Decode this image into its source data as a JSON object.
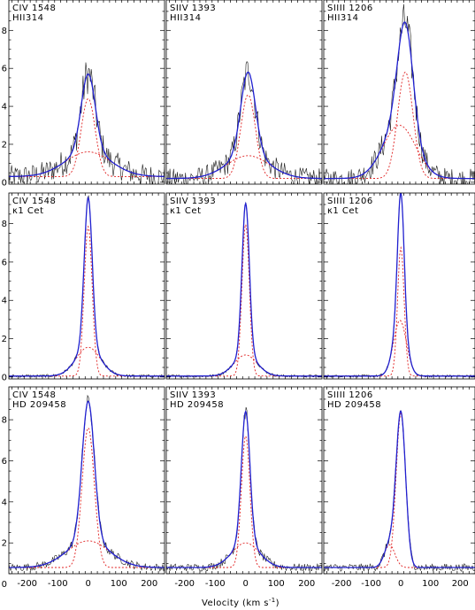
{
  "chart_data": {
    "type": "line",
    "xlabel": "Velocity (km s",
    "xlabel_exponent": "-1",
    "xlabel_close": ")",
    "xlim": [
      -260,
      250
    ],
    "xticks": [
      -200,
      -100,
      0,
      100,
      200
    ],
    "row_yranges": [
      [
        -0.1,
        9.6
      ],
      [
        -0.1,
        9.6
      ],
      [
        0.5,
        9.6
      ]
    ],
    "row_yticks": [
      [
        0,
        2,
        4,
        6,
        8
      ],
      [
        0,
        2,
        4,
        6,
        8
      ],
      [
        0,
        2,
        4,
        6,
        8
      ]
    ],
    "panels": [
      {
        "row": 0,
        "col": 0,
        "ion": "CIV 1548",
        "star": "HII314",
        "baseline": 0.3,
        "noise": 0.9,
        "components": [
          {
            "center": 0,
            "peak": 4.1,
            "sigma": 23
          },
          {
            "center": 0,
            "peak": 1.3,
            "sigma": 75
          }
        ]
      },
      {
        "row": 0,
        "col": 1,
        "ion": "SIIV 1393",
        "star": "HII314",
        "baseline": 0.2,
        "noise": 0.8,
        "components": [
          {
            "center": 8,
            "peak": 4.4,
            "sigma": 24
          },
          {
            "center": 8,
            "peak": 1.2,
            "sigma": 70
          }
        ]
      },
      {
        "row": 0,
        "col": 2,
        "ion": "SIIII 1206",
        "star": "HII314",
        "baseline": 0.2,
        "noise": 0.8,
        "components": [
          {
            "center": 15,
            "peak": 5.6,
            "sigma": 26
          },
          {
            "center": -5,
            "peak": 2.8,
            "sigma": 55
          }
        ]
      },
      {
        "row": 1,
        "col": 0,
        "ion": "CIV 1548",
        "star": "κ1 Cet",
        "baseline": 0.05,
        "noise": 0.12,
        "components": [
          {
            "center": 0,
            "peak": 7.8,
            "sigma": 13
          },
          {
            "center": 0,
            "peak": 1.5,
            "sigma": 40
          }
        ]
      },
      {
        "row": 1,
        "col": 1,
        "ion": "SIIV 1393",
        "star": "κ1 Cet",
        "baseline": 0.05,
        "noise": 0.1,
        "components": [
          {
            "center": 0,
            "peak": 7.9,
            "sigma": 12
          },
          {
            "center": 0,
            "peak": 1.1,
            "sigma": 38
          }
        ]
      },
      {
        "row": 1,
        "col": 2,
        "ion": "SIIII 1206",
        "star": "κ1 Cet",
        "baseline": 0.05,
        "noise": 0.1,
        "components": [
          {
            "center": 0,
            "peak": 6.7,
            "sigma": 11
          },
          {
            "center": -3,
            "peak": 2.9,
            "sigma": 22
          }
        ]
      },
      {
        "row": 2,
        "col": 0,
        "ion": "CIV 1548",
        "star": "HD 209458",
        "baseline": 0.8,
        "noise": 0.25,
        "components": [
          {
            "center": 0,
            "peak": 6.8,
            "sigma": 20
          },
          {
            "center": 0,
            "peak": 1.3,
            "sigma": 70
          }
        ]
      },
      {
        "row": 2,
        "col": 1,
        "ion": "SIIV 1393",
        "star": "HD 209458",
        "baseline": 0.8,
        "noise": 0.25,
        "components": [
          {
            "center": 0,
            "peak": 6.4,
            "sigma": 14
          },
          {
            "center": 0,
            "peak": 1.2,
            "sigma": 45
          }
        ]
      },
      {
        "row": 2,
        "col": 2,
        "ion": "SIIII 1206",
        "star": "HD 209458",
        "baseline": 0.8,
        "noise": 0.25,
        "components": [
          {
            "center": 0,
            "peak": 7.5,
            "sigma": 16
          },
          {
            "center": -38,
            "peak": 1.1,
            "sigma": 18
          }
        ]
      }
    ]
  }
}
